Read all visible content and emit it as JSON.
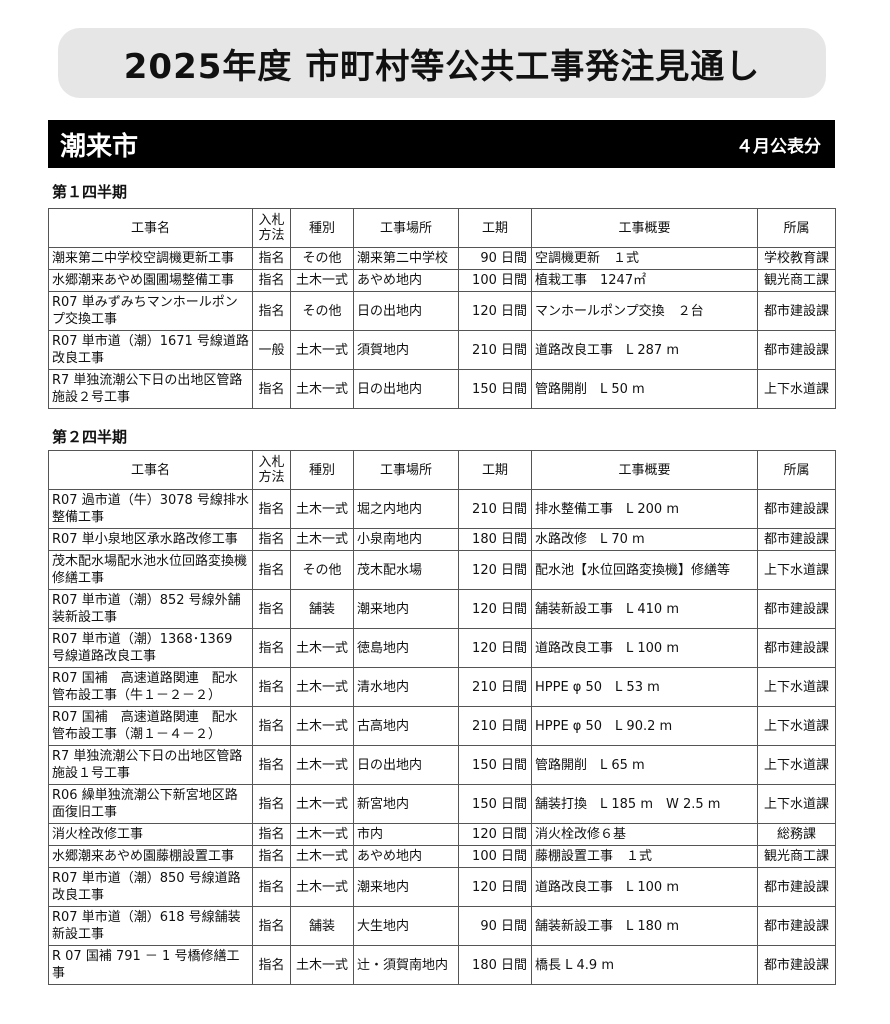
{
  "title": "2025年度 市町村等公共工事発注見通し",
  "city": "潮来市",
  "published": "４月公表分",
  "headers": [
    "工事名",
    "入札方法",
    "種別",
    "工事場所",
    "工期",
    "工事概要",
    "所属"
  ],
  "sections": [
    {
      "label": "第１四半期",
      "rows": [
        [
          "潮来第二中学校空調機更新工事",
          "指名",
          "その他",
          "潮来第二中学校",
          "90 日間",
          "空調機更新　１式",
          "学校教育課"
        ],
        [
          "水郷潮来あやめ園圃場整備工事",
          "指名",
          "土木一式",
          "あやめ地内",
          "100 日間",
          "植栽工事　1247㎡",
          "観光商工課"
        ],
        [
          "R07 単みずみちマンホールポンプ交換工事",
          "指名",
          "その他",
          "日の出地内",
          "120 日間",
          "マンホールポンプ交換　２台",
          "都市建設課"
        ],
        [
          "R07 単市道（潮）1671 号線道路改良工事",
          "一般",
          "土木一式",
          "須賀地内",
          "210 日間",
          "道路改良工事　L 287 m",
          "都市建設課"
        ],
        [
          "R7 単独流潮公下日の出地区管路施設２号工事",
          "指名",
          "土木一式",
          "日の出地内",
          "150 日間",
          "管路開削　L 50 m",
          "上下水道課"
        ]
      ]
    },
    {
      "label": "第２四半期",
      "rows": [
        [
          "R07 過市道（牛）3078 号線排水整備工事",
          "指名",
          "土木一式",
          "堀之内地内",
          "210 日間",
          "排水整備工事　L 200 m",
          "都市建設課"
        ],
        [
          "R07 単小泉地区承水路改修工事",
          "指名",
          "土木一式",
          "小泉南地内",
          "180 日間",
          "水路改修　L 70 m",
          "都市建設課"
        ],
        [
          "茂木配水場配水池水位回路変換機修繕工事",
          "指名",
          "その他",
          "茂木配水場",
          "120 日間",
          "配水池【水位回路変換機】修繕等",
          "上下水道課"
        ],
        [
          "R07 単市道（潮）852 号線外舗装新設工事",
          "指名",
          "舗装",
          "潮来地内",
          "120 日間",
          "舗装新設工事　L 410 m",
          "都市建設課"
        ],
        [
          "R07 単市道（潮）1368･1369 号線道路改良工事",
          "指名",
          "土木一式",
          "徳島地内",
          "120 日間",
          "道路改良工事　L 100 m",
          "都市建設課"
        ],
        [
          "R07 国補　高速道路関連　配水管布設工事（牛１－２－２）",
          "指名",
          "土木一式",
          "清水地内",
          "210 日間",
          "HPPE φ 50　L 53 m",
          "上下水道課"
        ],
        [
          "R07 国補　高速道路関連　配水管布設工事（潮１－４－２）",
          "指名",
          "土木一式",
          "古高地内",
          "210 日間",
          "HPPE φ 50　L 90.2 m",
          "上下水道課"
        ],
        [
          "R7 単独流潮公下日の出地区管路施設１号工事",
          "指名",
          "土木一式",
          "日の出地内",
          "150 日間",
          "管路開削　L 65 m",
          "上下水道課"
        ],
        [
          "R06 繰単独流潮公下新宮地区路面復旧工事",
          "指名",
          "土木一式",
          "新宮地内",
          "150 日間",
          "舗装打換　L 185 m　W 2.5 m",
          "上下水道課"
        ],
        [
          "消火栓改修工事",
          "指名",
          "土木一式",
          "市内",
          "120 日間",
          "消火栓改修６基",
          "総務課"
        ],
        [
          "水郷潮来あやめ園藤棚設置工事",
          "指名",
          "土木一式",
          "あやめ地内",
          "100 日間",
          "藤棚設置工事　１式",
          "観光商工課"
        ],
        [
          "R07 単市道（潮）850 号線道路改良工事",
          "指名",
          "土木一式",
          "潮来地内",
          "120 日間",
          "道路改良工事　L 100 m",
          "都市建設課"
        ],
        [
          "R07 単市道（潮）618 号線舗装新設工事",
          "指名",
          "舗装",
          "大生地内",
          "90 日間",
          "舗装新設工事　L 180 m",
          "都市建設課"
        ],
        [
          "R 07 国補 791 － 1 号橋修繕工事",
          "指名",
          "土木一式",
          "辻・須賀南地内",
          "180 日間",
          "橋長 L 4.9 m",
          "都市建設課"
        ]
      ]
    }
  ]
}
